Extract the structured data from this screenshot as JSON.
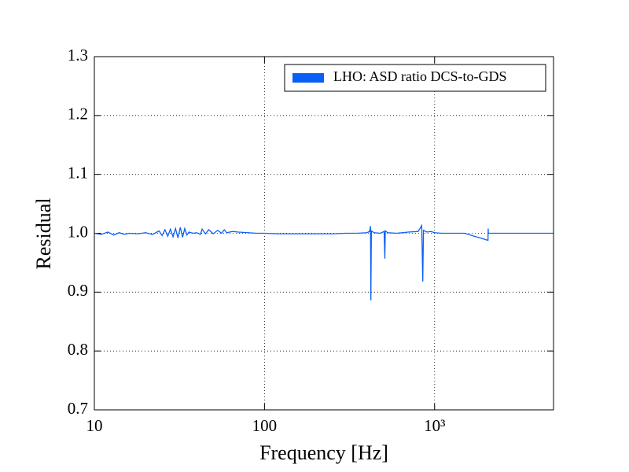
{
  "chart_data": {
    "type": "line",
    "xlabel": "Frequency [Hz]",
    "ylabel": "Residual",
    "xscale": "log",
    "grid": true,
    "legend": "upper right",
    "xlim": [
      10,
      5000
    ],
    "xticks": [
      10,
      100,
      {
        "value": 1000,
        "label": "10³"
      }
    ],
    "ylim": [
      0.7,
      1.3
    ],
    "yticks": [
      0.7,
      0.8,
      0.9,
      {
        "value": 1.0,
        "label": "1.0"
      },
      1.1,
      1.2,
      1.3
    ],
    "series": [
      {
        "name": "LHO: ASD ratio DCS-to-GDS",
        "color": "#0a5ff5",
        "x": [
          10,
          11,
          12,
          13,
          14,
          15,
          16,
          18,
          20,
          22,
          24,
          25,
          26,
          27,
          28,
          29,
          30,
          31,
          32,
          33,
          34,
          35,
          36,
          38,
          40,
          42,
          43,
          45,
          47,
          50,
          53,
          56,
          58,
          60,
          65,
          70,
          80,
          90,
          100,
          120,
          150,
          200,
          250,
          300,
          350,
          400,
          415,
          420,
          422,
          425,
          440,
          480,
          505,
          510,
          513,
          530,
          600,
          700,
          800,
          840,
          852,
          860,
          900,
          950,
          1000,
          1100,
          1500,
          2060,
          2065,
          2070,
          3000,
          5000
        ],
        "values": [
          1.0,
          0.998,
          1.002,
          0.997,
          1.001,
          0.998,
          1.0,
          0.999,
          1.001,
          0.998,
          1.004,
          0.996,
          1.006,
          0.995,
          1.007,
          0.994,
          1.008,
          0.992,
          1.01,
          0.993,
          1.008,
          0.997,
          1.002,
          1.0,
          1.001,
          0.998,
          1.007,
          0.999,
          1.006,
          0.999,
          1.005,
          1.0,
          1.006,
          1.001,
          1.003,
          1.002,
          1.001,
          1.0,
          1.0,
          0.999,
          0.999,
          0.999,
          0.999,
          1.0,
          1.0,
          1.001,
          1.003,
          1.012,
          0.886,
          1.004,
          1.001,
          1.0,
          1.003,
          0.957,
          1.004,
          1.001,
          1.0,
          1.002,
          1.003,
          1.013,
          0.918,
          1.005,
          1.002,
          1.003,
          1.001,
          1.0,
          1.0,
          0.988,
          1.008,
          1.0,
          1.0,
          1.0
        ]
      }
    ]
  }
}
